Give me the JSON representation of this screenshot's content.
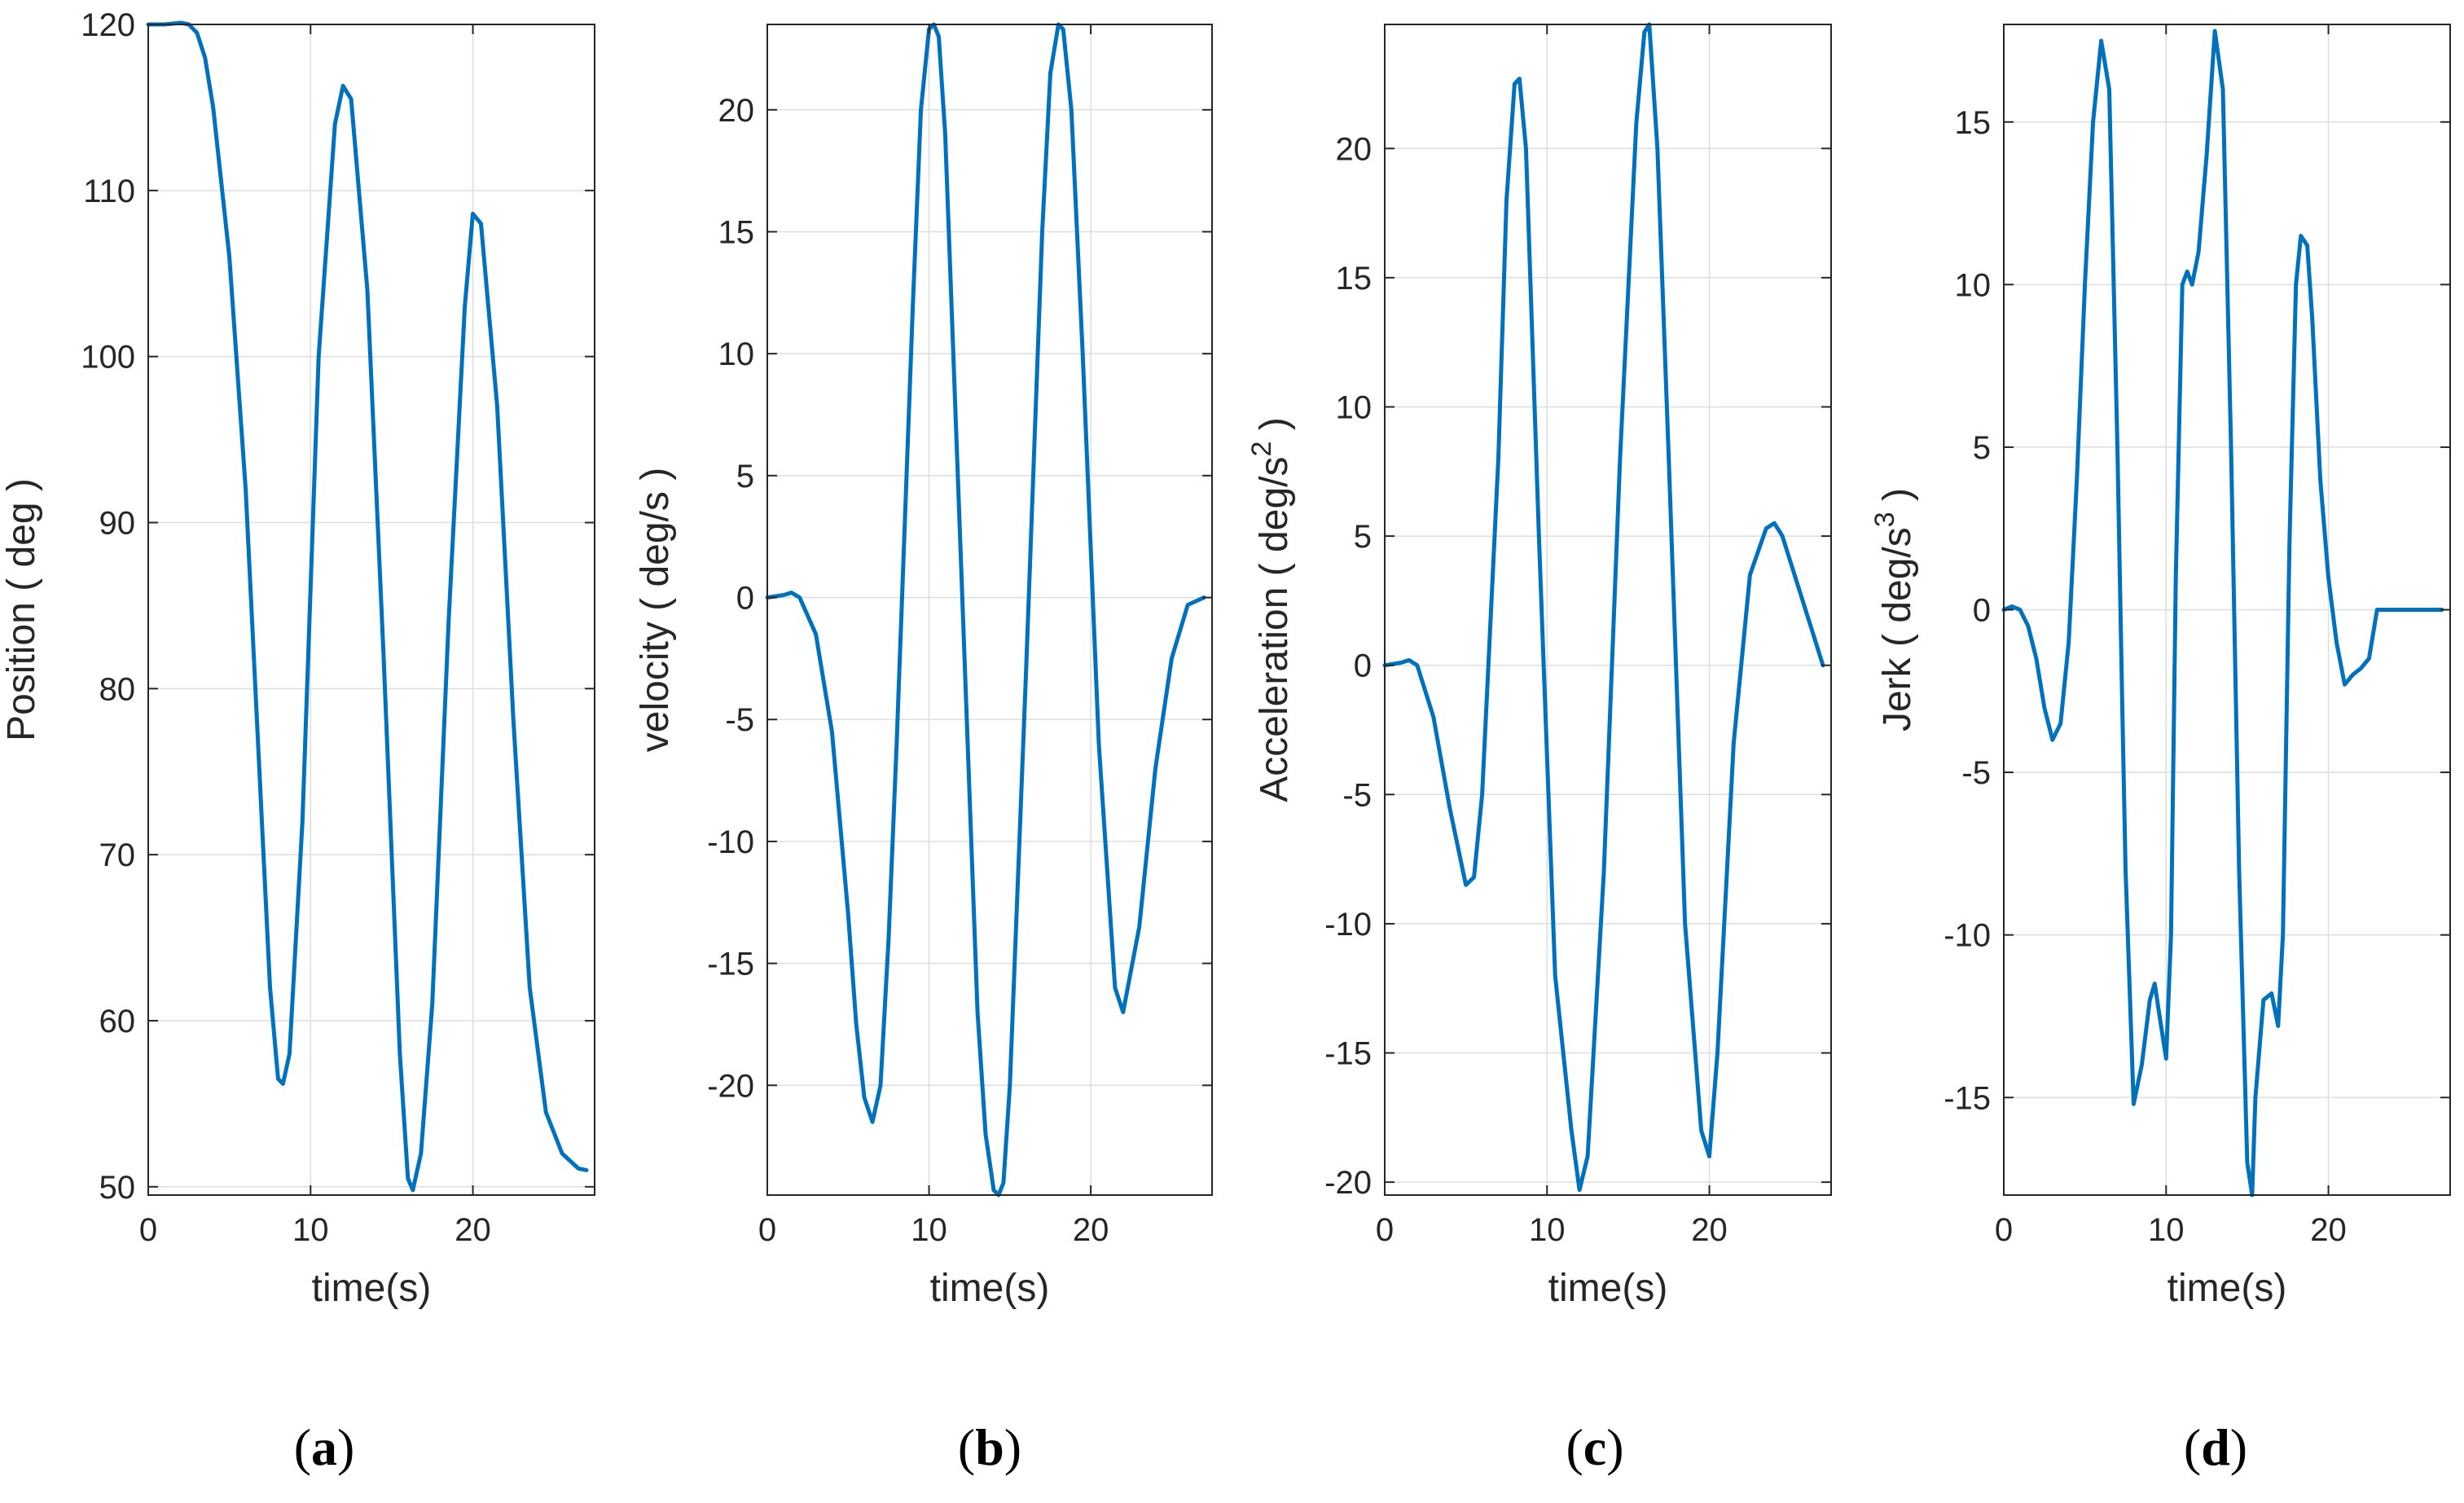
{
  "chart_data": [
    {
      "id": "a",
      "type": "line",
      "caption": "a",
      "xlabel": "time(s)",
      "ylabel": "Position ( deg )",
      "ylabel_sup": "",
      "ylabel_suffix": "",
      "xlim": [
        0,
        27.5
      ],
      "ylim": [
        49.5,
        120
      ],
      "xticks": [
        0,
        10,
        20
      ],
      "yticks": [
        50,
        60,
        70,
        80,
        90,
        100,
        110,
        120
      ],
      "grid": true,
      "series": [
        {
          "name": "position",
          "color": "#0072BD",
          "x": [
            0,
            1,
            2,
            2.5,
            3,
            3.5,
            4,
            5,
            6,
            7,
            7.5,
            8,
            8.3,
            8.7,
            9.5,
            10.5,
            11.5,
            12,
            12.5,
            13.5,
            14.5,
            15.5,
            16,
            16.3,
            16.8,
            17.5,
            18.5,
            19.5,
            20,
            20.5,
            21.5,
            22.5,
            23.5,
            24.5,
            25.5,
            26.5,
            27
          ],
          "y": [
            120,
            120,
            120.1,
            120,
            119.5,
            118,
            115,
            106,
            92,
            72,
            62,
            56.5,
            56.2,
            58,
            72,
            100,
            114,
            116.3,
            115.5,
            104,
            82,
            58,
            50.5,
            49.8,
            52,
            61,
            84,
            103,
            108.6,
            108,
            97,
            78,
            62,
            54.5,
            52,
            51.1,
            51
          ]
        }
      ]
    },
    {
      "id": "b",
      "type": "line",
      "caption": "b",
      "xlabel": "time(s)",
      "ylabel": "velocity ( deg/s )",
      "ylabel_sup": "",
      "ylabel_suffix": "",
      "xlim": [
        0,
        27.5
      ],
      "ylim": [
        -24.5,
        23.5
      ],
      "xticks": [
        0,
        10,
        20
      ],
      "yticks": [
        -20,
        -15,
        -10,
        -5,
        0,
        5,
        10,
        15,
        20
      ],
      "grid": true,
      "series": [
        {
          "name": "velocity",
          "color": "#0072BD",
          "x": [
            0,
            1,
            1.5,
            2,
            3,
            4,
            5,
            5.5,
            6,
            6.5,
            7,
            7.5,
            8,
            9,
            9.5,
            10,
            10.3,
            10.6,
            11,
            12,
            13,
            13.5,
            14,
            14.3,
            14.6,
            15,
            16,
            17,
            17.5,
            18,
            18.3,
            18.8,
            19.5,
            20.5,
            21.5,
            22,
            23,
            24,
            25,
            26,
            27
          ],
          "y": [
            0,
            0.1,
            0.2,
            0,
            -1.5,
            -5.5,
            -13,
            -17.5,
            -20.5,
            -21.5,
            -20,
            -14,
            -6,
            12,
            20,
            23.3,
            23.5,
            23,
            19,
            1,
            -17,
            -22,
            -24.3,
            -24.5,
            -24,
            -20,
            -3,
            15,
            21.5,
            23.5,
            23.3,
            20,
            10,
            -6,
            -16,
            -17,
            -13.5,
            -7,
            -2.5,
            -0.3,
            0
          ]
        }
      ]
    },
    {
      "id": "c",
      "type": "line",
      "caption": "c",
      "xlabel": "time(s)",
      "ylabel": "Acceleration ( deg/s",
      "ylabel_sup": "2",
      "ylabel_suffix": " )",
      "xlim": [
        0,
        27.5
      ],
      "ylim": [
        -20.5,
        24.8
      ],
      "xticks": [
        0,
        10,
        20
      ],
      "yticks": [
        -20,
        -15,
        -10,
        -5,
        0,
        5,
        10,
        15,
        20
      ],
      "grid": true,
      "series": [
        {
          "name": "acceleration",
          "color": "#0072BD",
          "x": [
            0,
            1,
            1.5,
            2,
            3,
            4,
            5,
            5.5,
            6,
            7,
            7.5,
            8,
            8.3,
            8.7,
            9.5,
            10.5,
            11.5,
            12,
            12.5,
            13.5,
            14.5,
            15.5,
            16,
            16.3,
            16.8,
            17.5,
            18.5,
            19.5,
            20,
            20.5,
            21.5,
            22.5,
            23.5,
            24,
            24.5,
            25.5,
            26.5,
            27
          ],
          "y": [
            0,
            0.1,
            0.2,
            0,
            -2,
            -5.5,
            -8.5,
            -8.2,
            -5,
            8,
            18,
            22.5,
            22.7,
            20,
            5,
            -12,
            -18,
            -20.3,
            -19,
            -8,
            8,
            21,
            24.5,
            24.8,
            20,
            8,
            -10,
            -18,
            -19,
            -15,
            -3,
            3.5,
            5.3,
            5.5,
            5,
            3,
            1,
            0
          ]
        }
      ]
    },
    {
      "id": "d",
      "type": "line",
      "caption": "d",
      "xlabel": "time(s)",
      "ylabel": "Jerk ( deg/s",
      "ylabel_sup": "3",
      "ylabel_suffix": " )",
      "xlim": [
        0,
        27.5
      ],
      "ylim": [
        -18,
        18
      ],
      "xticks": [
        0,
        10,
        20
      ],
      "yticks": [
        -15,
        -10,
        -5,
        0,
        5,
        10,
        15
      ],
      "grid": true,
      "series": [
        {
          "name": "jerk",
          "color": "#0072BD",
          "x": [
            0,
            0.5,
            1,
            1.5,
            2,
            2.5,
            3,
            3.5,
            4,
            4.5,
            5,
            5.5,
            6,
            6.5,
            7,
            7.3,
            7.5,
            8,
            8.5,
            9,
            9.3,
            9.6,
            10,
            10.3,
            10.6,
            11,
            11.3,
            11.6,
            12,
            12.5,
            13,
            13.5,
            14,
            14.5,
            15,
            15.3,
            15.5,
            16,
            16.5,
            16.9,
            17.2,
            17.6,
            18,
            18.3,
            18.7,
            19,
            19.5,
            20,
            20.5,
            21,
            21.5,
            22,
            22.5,
            23,
            24,
            24.5,
            25,
            25.5,
            26,
            26.5,
            27
          ],
          "y": [
            0,
            0.1,
            0,
            -0.5,
            -1.5,
            -3,
            -4,
            -3.5,
            -1,
            4,
            10,
            15,
            17.5,
            16,
            5,
            -3,
            -8,
            -15.2,
            -14,
            -12,
            -11.5,
            -12.5,
            -13.8,
            -10,
            1,
            10,
            10.4,
            10,
            11,
            14,
            17.8,
            16,
            5,
            -8,
            -17,
            -18,
            -15,
            -12,
            -11.8,
            -12.8,
            -10,
            2,
            10,
            11.5,
            11.2,
            9,
            4,
            1,
            -1,
            -2.3,
            -2,
            -1.8,
            -1.5,
            0,
            0,
            0,
            0,
            0,
            0,
            0,
            0
          ]
        }
      ]
    }
  ]
}
